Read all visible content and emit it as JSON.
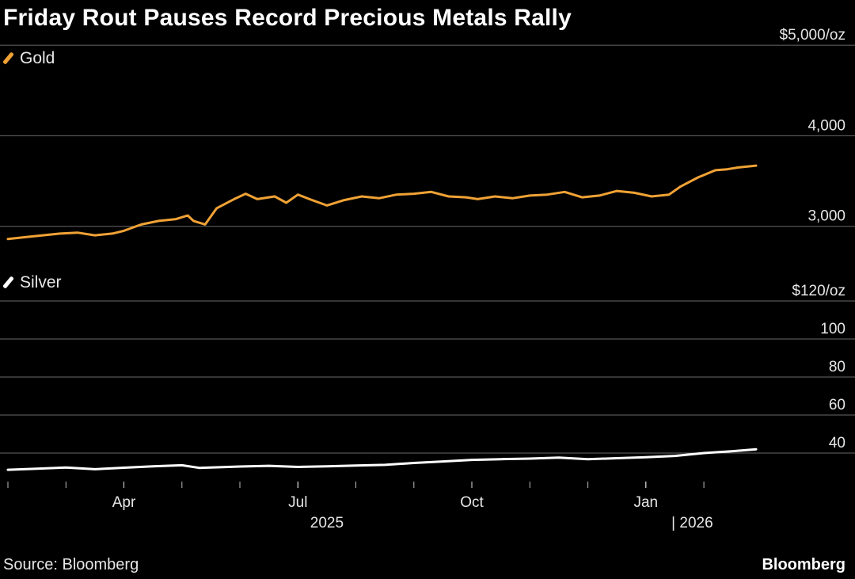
{
  "title": "Friday Rout Pauses Record Precious Metals Rally",
  "source": "Source: Bloomberg",
  "brand": "Bloomberg",
  "colors": {
    "gold": "#f0a235",
    "silver": "#ffffff",
    "grid": "#6a6a6a",
    "background": "#000000"
  },
  "chart_data": [
    {
      "type": "line",
      "series": [
        {
          "name": "Gold",
          "color": "#f0a235"
        }
      ],
      "y_unit_label": "$5,000/oz",
      "ylim": [
        2700,
        5500
      ],
      "yticks": [
        {
          "value": 3000,
          "label": "3,000"
        },
        {
          "value": 4000,
          "label": "4,000"
        },
        {
          "value": 5000,
          "label": "$5,000/oz"
        }
      ],
      "x_range": [
        0,
        12.9
      ],
      "points": [
        [
          0.0,
          2860
        ],
        [
          0.3,
          2880
        ],
        [
          0.6,
          2900
        ],
        [
          0.9,
          2920
        ],
        [
          1.2,
          2930
        ],
        [
          1.5,
          2900
        ],
        [
          1.8,
          2920
        ],
        [
          2.0,
          2950
        ],
        [
          2.3,
          3020
        ],
        [
          2.6,
          3060
        ],
        [
          2.9,
          3080
        ],
        [
          3.1,
          3120
        ],
        [
          3.2,
          3060
        ],
        [
          3.4,
          3020
        ],
        [
          3.6,
          3200
        ],
        [
          3.9,
          3300
        ],
        [
          4.1,
          3360
        ],
        [
          4.3,
          3300
        ],
        [
          4.6,
          3330
        ],
        [
          4.8,
          3260
        ],
        [
          5.0,
          3350
        ],
        [
          5.2,
          3300
        ],
        [
          5.5,
          3230
        ],
        [
          5.8,
          3290
        ],
        [
          6.1,
          3330
        ],
        [
          6.4,
          3310
        ],
        [
          6.7,
          3350
        ],
        [
          7.0,
          3360
        ],
        [
          7.3,
          3380
        ],
        [
          7.6,
          3330
        ],
        [
          7.9,
          3320
        ],
        [
          8.1,
          3300
        ],
        [
          8.4,
          3330
        ],
        [
          8.7,
          3310
        ],
        [
          9.0,
          3340
        ],
        [
          9.3,
          3350
        ],
        [
          9.6,
          3380
        ],
        [
          9.9,
          3320
        ],
        [
          10.2,
          3340
        ],
        [
          10.5,
          3390
        ],
        [
          10.8,
          3370
        ],
        [
          11.1,
          3330
        ],
        [
          11.4,
          3350
        ],
        [
          11.6,
          3440
        ],
        [
          11.9,
          3540
        ],
        [
          12.2,
          3620
        ],
        [
          12.4,
          3630
        ],
        [
          12.6,
          3650
        ],
        [
          12.9,
          3670
        ]
      ]
    },
    {
      "type": "line",
      "series": [
        {
          "name": "Silver",
          "color": "#ffffff"
        }
      ],
      "y_unit_label": "$120/oz",
      "ylim": [
        25,
        120
      ],
      "yticks": [
        {
          "value": 40,
          "label": "40"
        },
        {
          "value": 60,
          "label": "60"
        },
        {
          "value": 80,
          "label": "80"
        },
        {
          "value": 100,
          "label": "100"
        },
        {
          "value": 120,
          "label": "$120/oz"
        }
      ],
      "x_range": [
        0,
        12.9
      ],
      "points": [
        [
          0.0,
          31.2
        ],
        [
          0.5,
          31.8
        ],
        [
          1.0,
          32.4
        ],
        [
          1.5,
          31.5
        ],
        [
          2.0,
          32.3
        ],
        [
          2.5,
          33.0
        ],
        [
          3.0,
          33.6
        ],
        [
          3.3,
          32.2
        ],
        [
          3.6,
          32.5
        ],
        [
          4.0,
          32.9
        ],
        [
          4.5,
          33.3
        ],
        [
          5.0,
          32.7
        ],
        [
          5.5,
          33.0
        ],
        [
          6.0,
          33.4
        ],
        [
          6.5,
          33.8
        ],
        [
          7.0,
          34.8
        ],
        [
          7.5,
          35.6
        ],
        [
          8.0,
          36.4
        ],
        [
          8.5,
          36.8
        ],
        [
          9.0,
          37.1
        ],
        [
          9.5,
          37.6
        ],
        [
          10.0,
          36.8
        ],
        [
          10.5,
          37.3
        ],
        [
          11.0,
          37.8
        ],
        [
          11.5,
          38.5
        ],
        [
          12.0,
          40.0
        ],
        [
          12.5,
          41.0
        ],
        [
          12.9,
          42.0
        ]
      ]
    }
  ],
  "x_axis": {
    "range": [
      0,
      12.9
    ],
    "minor_ticks": [
      0.0,
      1.0,
      2.0,
      3.0,
      4.0,
      5.0,
      6.0,
      7.0,
      8.0,
      9.0,
      10.0,
      11.0,
      12.0
    ],
    "labels": [
      {
        "value": 2.0,
        "text": "Apr"
      },
      {
        "value": 5.0,
        "text": "Jul"
      },
      {
        "value": 8.0,
        "text": "Oct"
      },
      {
        "value": 11.0,
        "text": "Jan"
      }
    ],
    "years": [
      {
        "value": 5.5,
        "text": "2025"
      },
      {
        "value": 11.8,
        "text": "| 2026"
      }
    ]
  }
}
